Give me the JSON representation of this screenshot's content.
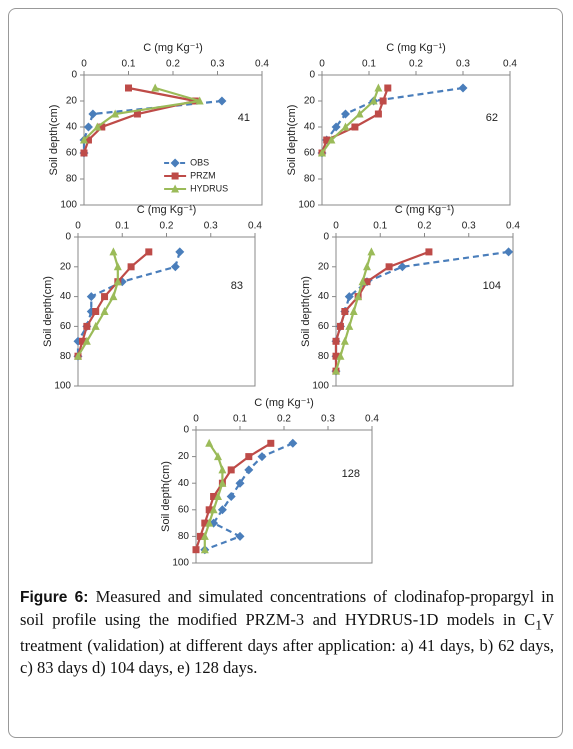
{
  "chart_data": [
    {
      "type": "line",
      "xlabel": "C (mg Kg⁻¹)",
      "ylabel": "Soil depth(cm)",
      "annotation": "41",
      "xlim": [
        0,
        0.4
      ],
      "xticks": [
        0,
        0.1,
        0.2,
        0.3,
        0.4
      ],
      "ylim": [
        0,
        100
      ],
      "yticks": [
        0,
        20,
        40,
        60,
        80,
        100
      ],
      "y_inverted": true,
      "legend": "bottom",
      "series": [
        {
          "name": "OBS",
          "color": "#4a7ebb",
          "marker": "diamond",
          "dashed": true,
          "x": [
            0.31,
            0.02,
            0.01,
            0.0,
            0.0
          ],
          "y": [
            20,
            30,
            40,
            50,
            60
          ]
        },
        {
          "name": "PRZM",
          "color": "#be4b48",
          "marker": "square",
          "dashed": false,
          "x": [
            0.1,
            0.25,
            0.12,
            0.04,
            0.01,
            0.0
          ],
          "y": [
            10,
            20,
            30,
            40,
            50,
            60
          ]
        },
        {
          "name": "HYDRUS",
          "color": "#9bbb59",
          "marker": "triangle",
          "dashed": false,
          "x": [
            0.16,
            0.26,
            0.07,
            0.03,
            0.0
          ],
          "y": [
            10,
            20,
            30,
            40,
            50
          ]
        }
      ]
    },
    {
      "type": "line",
      "xlabel": "C (mg Kg⁻¹)",
      "ylabel": "Soil depth(cm)",
      "annotation": "62",
      "xlim": [
        0,
        0.4
      ],
      "xticks": [
        0,
        0.1,
        0.2,
        0.3,
        0.4
      ],
      "ylim": [
        0,
        100
      ],
      "yticks": [
        0,
        20,
        40,
        60,
        80,
        100
      ],
      "y_inverted": true,
      "series": [
        {
          "name": "OBS",
          "color": "#4a7ebb",
          "marker": "diamond",
          "dashed": true,
          "x": [
            0.3,
            0.11,
            0.05,
            0.03,
            0.01,
            0.0
          ],
          "y": [
            10,
            20,
            30,
            40,
            50,
            60
          ]
        },
        {
          "name": "PRZM",
          "color": "#be4b48",
          "marker": "square",
          "dashed": false,
          "x": [
            0.14,
            0.13,
            0.12,
            0.07,
            0.01,
            0.0
          ],
          "y": [
            10,
            20,
            30,
            40,
            50,
            60
          ]
        },
        {
          "name": "HYDRUS",
          "color": "#9bbb59",
          "marker": "triangle",
          "dashed": false,
          "x": [
            0.12,
            0.11,
            0.08,
            0.05,
            0.02,
            0.0
          ],
          "y": [
            10,
            20,
            30,
            40,
            50,
            60
          ]
        }
      ]
    },
    {
      "type": "line",
      "xlabel": "C (mg Kg⁻¹)",
      "ylabel": "Soil depth(cm)",
      "annotation": "83",
      "xlim": [
        0,
        0.4
      ],
      "xticks": [
        0,
        0.1,
        0.2,
        0.3,
        0.4
      ],
      "ylim": [
        0,
        100
      ],
      "yticks": [
        0,
        20,
        40,
        60,
        80,
        100
      ],
      "y_inverted": true,
      "series": [
        {
          "name": "OBS",
          "color": "#4a7ebb",
          "marker": "diamond",
          "dashed": true,
          "x": [
            0.23,
            0.22,
            0.1,
            0.03,
            0.03,
            0.02,
            0.0,
            0.0
          ],
          "y": [
            10,
            20,
            30,
            40,
            50,
            60,
            70,
            80
          ]
        },
        {
          "name": "PRZM",
          "color": "#be4b48",
          "marker": "square",
          "dashed": false,
          "x": [
            0.16,
            0.12,
            0.09,
            0.06,
            0.04,
            0.02,
            0.01,
            0.0
          ],
          "y": [
            10,
            20,
            30,
            40,
            50,
            60,
            70,
            80
          ]
        },
        {
          "name": "HYDRUS",
          "color": "#9bbb59",
          "marker": "triangle",
          "dashed": false,
          "x": [
            0.08,
            0.09,
            0.09,
            0.08,
            0.06,
            0.04,
            0.02,
            0.0
          ],
          "y": [
            10,
            20,
            30,
            40,
            50,
            60,
            70,
            80
          ]
        }
      ]
    },
    {
      "type": "line",
      "xlabel": "C (mg Kg⁻¹)",
      "ylabel": "Soil depth(cm)",
      "annotation": "104",
      "xlim": [
        0,
        0.4
      ],
      "xticks": [
        0,
        0.1,
        0.2,
        0.3,
        0.4
      ],
      "ylim": [
        0,
        100
      ],
      "yticks": [
        0,
        20,
        40,
        60,
        80,
        100
      ],
      "y_inverted": true,
      "series": [
        {
          "name": "OBS",
          "color": "#4a7ebb",
          "marker": "diamond",
          "dashed": true,
          "x": [
            0.39,
            0.15,
            0.07,
            0.03,
            0.02,
            0.01,
            0.0,
            0.0,
            0.0
          ],
          "y": [
            10,
            20,
            30,
            40,
            50,
            60,
            70,
            80,
            90
          ]
        },
        {
          "name": "PRZM",
          "color": "#be4b48",
          "marker": "square",
          "dashed": false,
          "x": [
            0.21,
            0.12,
            0.07,
            0.05,
            0.02,
            0.01,
            0.0,
            0.0,
            0.0
          ],
          "y": [
            10,
            20,
            30,
            40,
            50,
            60,
            70,
            80,
            90
          ]
        },
        {
          "name": "HYDRUS",
          "color": "#9bbb59",
          "marker": "triangle",
          "dashed": false,
          "x": [
            0.08,
            0.07,
            0.06,
            0.05,
            0.04,
            0.03,
            0.02,
            0.01,
            0.0
          ],
          "y": [
            10,
            20,
            30,
            40,
            50,
            60,
            70,
            80,
            90
          ]
        }
      ]
    },
    {
      "type": "line",
      "xlabel": "C (mg Kg⁻¹)",
      "ylabel": "Soil depth(cm)",
      "annotation": "128",
      "xlim": [
        0,
        0.4
      ],
      "xticks": [
        0,
        0.1,
        0.2,
        0.3,
        0.4
      ],
      "ylim": [
        0,
        100
      ],
      "yticks": [
        0,
        20,
        40,
        60,
        80,
        100
      ],
      "y_inverted": true,
      "series": [
        {
          "name": "OBS",
          "color": "#4a7ebb",
          "marker": "diamond",
          "dashed": true,
          "x": [
            0.22,
            0.15,
            0.12,
            0.1,
            0.08,
            0.06,
            0.04,
            0.1,
            0.02
          ],
          "y": [
            10,
            20,
            30,
            40,
            50,
            60,
            70,
            80,
            90
          ]
        },
        {
          "name": "PRZM",
          "color": "#be4b48",
          "marker": "square",
          "dashed": false,
          "x": [
            0.17,
            0.12,
            0.08,
            0.06,
            0.04,
            0.03,
            0.02,
            0.01,
            0.0
          ],
          "y": [
            10,
            20,
            30,
            40,
            50,
            60,
            70,
            80,
            90
          ]
        },
        {
          "name": "HYDRUS",
          "color": "#9bbb59",
          "marker": "triangle",
          "dashed": false,
          "x": [
            0.03,
            0.05,
            0.06,
            0.06,
            0.05,
            0.04,
            0.03,
            0.02,
            0.02
          ],
          "y": [
            10,
            20,
            30,
            40,
            50,
            60,
            70,
            80,
            90
          ]
        }
      ]
    }
  ],
  "caption": {
    "label": "Figure 6:",
    "text_before_sub": " Measured and simulated concentrations of clodinafop-propargyl in soil profile using the modified PRZM-3 and HYDRUS-1D models in C",
    "sub": "1",
    "text_after_sub": "V treatment (validation) at different days after application: a) 41 days, b) 62 days, c) 83 days d) 104 days, e) 128 days."
  }
}
